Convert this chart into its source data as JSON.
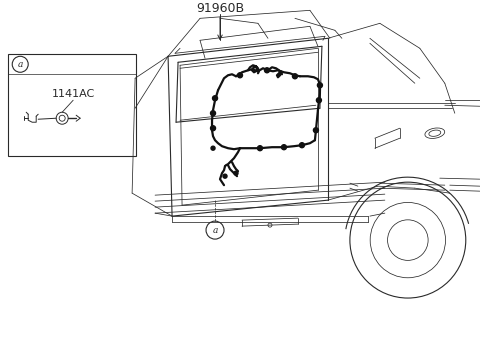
{
  "bg_color": "#ffffff",
  "line_color": "#2a2a2a",
  "wiring_color": "#111111",
  "label_91960B": "91960B",
  "label_1141AC": "1141AC",
  "label_a": "a",
  "line_width": 0.8,
  "thin_line": 0.55,
  "wiring_lw": 1.6
}
